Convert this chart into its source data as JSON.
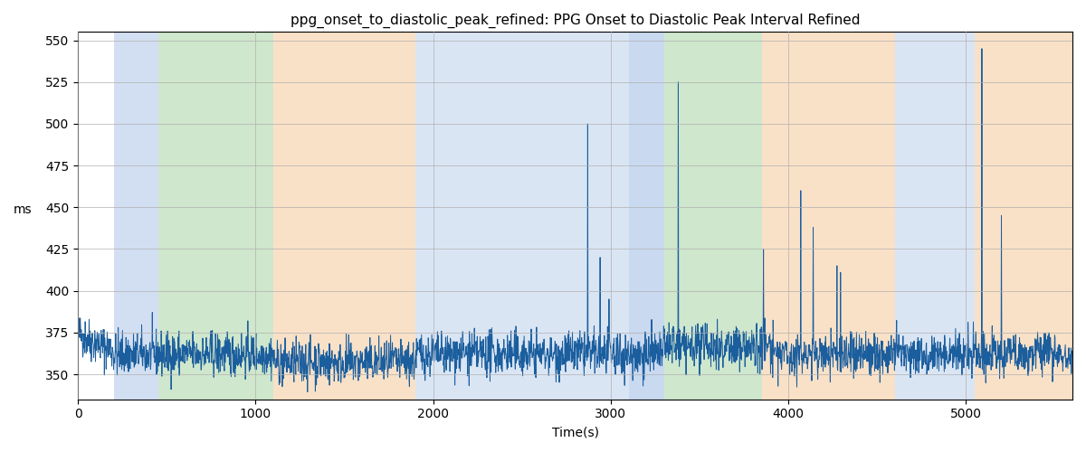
{
  "title": "ppg_onset_to_diastolic_peak_refined: PPG Onset to Diastolic Peak Interval Refined",
  "xlabel": "Time(s)",
  "ylabel": "ms",
  "xlim": [
    0,
    5600
  ],
  "ylim": [
    335,
    555
  ],
  "yticks": [
    350,
    375,
    400,
    425,
    450,
    475,
    500,
    525,
    550
  ],
  "xticks": [
    0,
    1000,
    2000,
    3000,
    4000,
    5000
  ],
  "line_color": "#1b5e9e",
  "line_width": 0.7,
  "grid_color": "#b0b0b0",
  "bg_regions": [
    {
      "xmin": 200,
      "xmax": 450,
      "color": "#adc6e8",
      "alpha": 0.55
    },
    {
      "xmin": 450,
      "xmax": 1100,
      "color": "#a8d5a2",
      "alpha": 0.55
    },
    {
      "xmin": 1100,
      "xmax": 1900,
      "color": "#f5c99a",
      "alpha": 0.55
    },
    {
      "xmin": 1900,
      "xmax": 3100,
      "color": "#adc6e8",
      "alpha": 0.45
    },
    {
      "xmin": 3100,
      "xmax": 3300,
      "color": "#adc6e8",
      "alpha": 0.65
    },
    {
      "xmin": 3300,
      "xmax": 3850,
      "color": "#a8d5a2",
      "alpha": 0.55
    },
    {
      "xmin": 3850,
      "xmax": 4600,
      "color": "#f5c99a",
      "alpha": 0.55
    },
    {
      "xmin": 4600,
      "xmax": 5050,
      "color": "#adc6e8",
      "alpha": 0.45
    },
    {
      "xmin": 5050,
      "xmax": 5620,
      "color": "#f5c99a",
      "alpha": 0.55
    }
  ],
  "seed": 42,
  "base_value": 362,
  "noise_std": 6.5,
  "samples_per_second": 0.5
}
